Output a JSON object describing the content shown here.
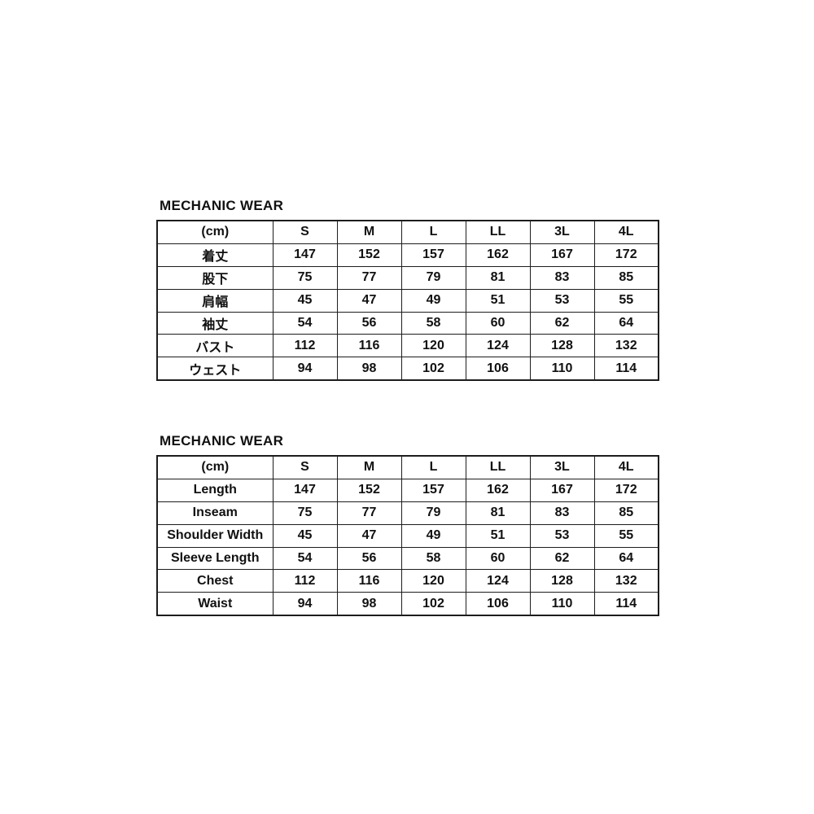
{
  "page": {
    "background": "#ffffff"
  },
  "colors": {
    "text": "#111111",
    "border": "#1d1d1d",
    "background": "#ffffff"
  },
  "chart_data": [
    {
      "type": "table",
      "title": "MECHANIC WEAR",
      "unit_header": "(cm)",
      "columns": [
        "S",
        "M",
        "L",
        "LL",
        "3L",
        "4L"
      ],
      "rows": [
        {
          "label": "着丈",
          "values": [
            147,
            152,
            157,
            162,
            167,
            172
          ]
        },
        {
          "label": "股下",
          "values": [
            75,
            77,
            79,
            81,
            83,
            85
          ]
        },
        {
          "label": "肩幅",
          "values": [
            45,
            47,
            49,
            51,
            53,
            55
          ]
        },
        {
          "label": "袖丈",
          "values": [
            54,
            56,
            58,
            60,
            62,
            64
          ]
        },
        {
          "label": "バスト",
          "values": [
            112,
            116,
            120,
            124,
            128,
            132
          ]
        },
        {
          "label": "ウェスト",
          "values": [
            94,
            98,
            102,
            106,
            110,
            114
          ]
        }
      ]
    },
    {
      "type": "table",
      "title": "MECHANIC WEAR",
      "unit_header": "(cm)",
      "columns": [
        "S",
        "M",
        "L",
        "LL",
        "3L",
        "4L"
      ],
      "rows": [
        {
          "label": "Length",
          "values": [
            147,
            152,
            157,
            162,
            167,
            172
          ]
        },
        {
          "label": "Inseam",
          "values": [
            75,
            77,
            79,
            81,
            83,
            85
          ]
        },
        {
          "label": "Shoulder Width",
          "values": [
            45,
            47,
            49,
            51,
            53,
            55
          ]
        },
        {
          "label": "Sleeve Length",
          "values": [
            54,
            56,
            58,
            60,
            62,
            64
          ]
        },
        {
          "label": "Chest",
          "values": [
            112,
            116,
            120,
            124,
            128,
            132
          ]
        },
        {
          "label": "Waist",
          "values": [
            94,
            98,
            102,
            106,
            110,
            114
          ]
        }
      ]
    }
  ]
}
